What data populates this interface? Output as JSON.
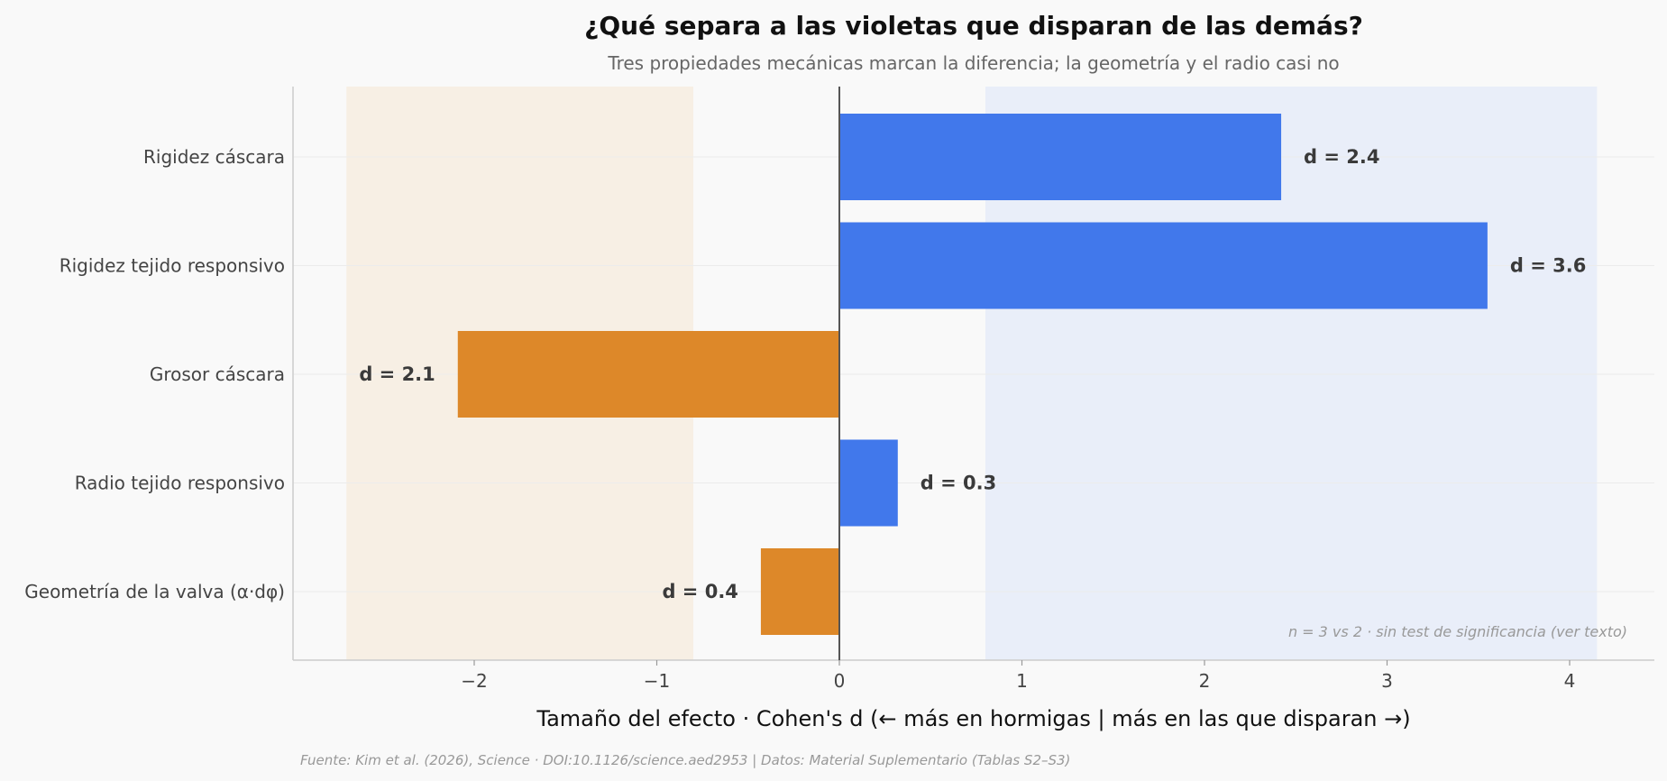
{
  "chart_data": {
    "type": "bar",
    "orientation": "horizontal",
    "title": "¿Qué separa a las violetas que disparan de las demás?",
    "subtitle": "Tres propiedades mecánicas marcan la diferencia; la geometría y el radio casi no",
    "xlabel": "Tamaño del efecto · Cohen's d  (← más en hormigas | más en las que disparan →)",
    "ylabel": "",
    "xlim": [
      -3.0,
      4.5
    ],
    "xticks": [
      -2,
      -1,
      0,
      1,
      2,
      3,
      4
    ],
    "xtick_labels": [
      "−2",
      "−1",
      "0",
      "1",
      "2",
      "3",
      "4"
    ],
    "categories": [
      "Rigidez cáscara",
      "Rigidez tejido responsivo",
      "Grosor cáscara",
      "Radio tejido responsivo",
      "Geometría de la valva (α·dφ)"
    ],
    "values": [
      2.42,
      3.55,
      -2.09,
      0.32,
      -0.43
    ],
    "value_labels": [
      "d = 2.4",
      "d = 3.6",
      "d = 2.1",
      "d = 0.3",
      "d = 0.4"
    ],
    "shaded_bands": [
      {
        "xmin": -2.7,
        "xmax": -0.8,
        "color": "#f7efe4"
      },
      {
        "xmin": 0.8,
        "xmax": 4.15,
        "color": "#e9eef9"
      }
    ],
    "grid": "horizontal-faint",
    "note": "n = 3 vs 2 · sin test de significancia (ver texto)",
    "source": "Fuente: Kim et al. (2026), Science · DOI:10.1126/science.aed2953 | Datos: Material Suplementario (Tablas S2–S3)"
  },
  "colors": {
    "positive": "#4178eb",
    "negative": "#dd8829",
    "zero_line": "#555555",
    "axis": "#cccccc",
    "grid": "#ececec"
  }
}
